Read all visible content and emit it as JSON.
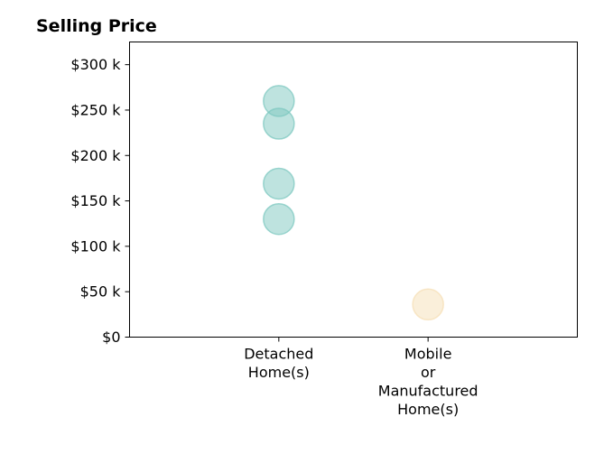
{
  "chart_data": {
    "type": "scatter",
    "title": "Selling Price",
    "xlabel": "",
    "ylabel": "",
    "categories": [
      "Detached Home(s)",
      "Mobile or Manufactured Home(s)"
    ],
    "category_lines": [
      [
        "Detached",
        "Home(s)"
      ],
      [
        "Mobile",
        "or",
        "Manufactured",
        "Home(s)"
      ]
    ],
    "ylim": [
      0,
      325000
    ],
    "xlim": [
      -1,
      2
    ],
    "yticks": [
      0,
      50000,
      100000,
      150000,
      200000,
      250000,
      300000
    ],
    "ytick_labels": [
      "$0",
      "$50 k",
      "$100 k",
      "$150 k",
      "$200 k",
      "$250 k",
      "$300 k"
    ],
    "grid": false,
    "legend": "none",
    "series": [
      {
        "category": "Detached Home(s)",
        "color": "#7ec8c0",
        "values": [
          260000,
          235000,
          169000,
          130000
        ]
      },
      {
        "category": "Mobile or Manufactured Home(s)",
        "color": "#f5dfb5",
        "values": [
          36000
        ]
      }
    ]
  }
}
